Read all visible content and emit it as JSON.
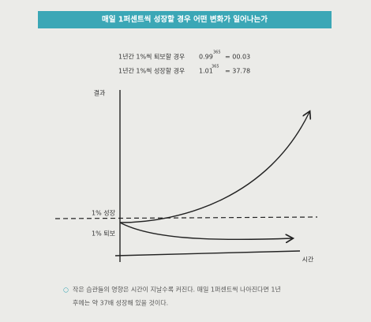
{
  "header": {
    "title": "매일 1퍼센트씩 성장할 경우 어떤 변화가 일어나는가"
  },
  "formulas": [
    {
      "label": "1년간 1%씩 퇴보할 경우",
      "base": "0.99",
      "exponent": "365",
      "result": "= 00.03"
    },
    {
      "label": "1년간 1%씩 성장할 경우",
      "base": "1.01",
      "exponent": "365",
      "result": "= 37.78"
    }
  ],
  "chart": {
    "y_label": "결과",
    "x_label": "시간",
    "growth_label": "1% 성장",
    "decline_label": "1% 퇴보"
  },
  "caption": {
    "bullet": "○",
    "lines": [
      "작은 습관들의 영향은 시간이 지날수록 커진다. 매일 1퍼센트씩 나아진다면 1년",
      "후에는 약 37배 성장해 있을 것이다."
    ]
  }
}
